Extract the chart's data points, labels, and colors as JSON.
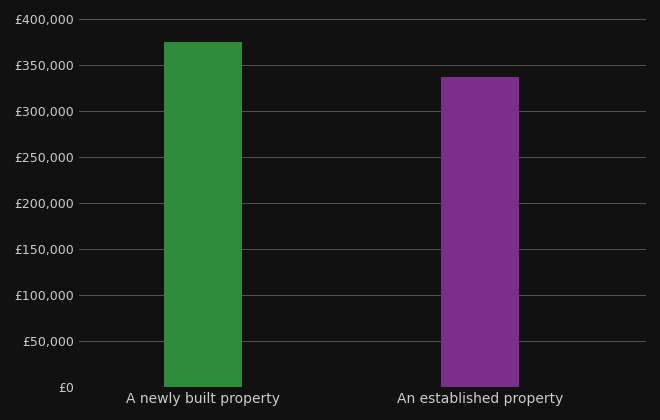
{
  "categories": [
    "A newly built property",
    "An established property"
  ],
  "values": [
    375000,
    337000
  ],
  "bar_colors": [
    "#2e8b3a",
    "#7b2e8b"
  ],
  "background_color": "#111111",
  "text_color": "#cccccc",
  "grid_color": "#555555",
  "ylim": [
    0,
    400000
  ],
  "ytick_step": 50000,
  "bar_width": 0.28,
  "x_positions": [
    1,
    2
  ],
  "xlim": [
    0.55,
    2.6
  ]
}
